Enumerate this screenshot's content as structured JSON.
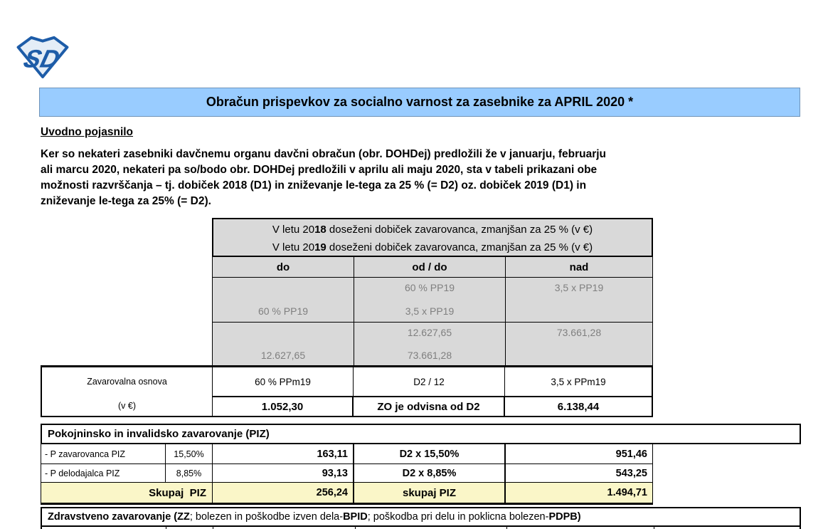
{
  "document": {
    "title": "Obračun prispevkov za socialno varnost za zasebnike za APRIL 2020 *",
    "logo_text": "SD"
  },
  "intro": {
    "heading": "Uvodno pojasnilo",
    "paragraph": "Ker so nekateri zasebniki davčnemu organu davčni obračun (obr. DOHDej) predložili že v januarju, februarju\nali marcu 2020, nekateri pa so/bodo obr. DOHDej predložili v aprilu ali maju 2020, sta v tabeli prikazani obe\nmožnosti razvrščanja – tj. dobiček 2018 (D1) in zniževanje le-tega za 25 % (= D2) oz. dobiček 2019 (D1) in\nzniževanje le-tega za 25% (= D2)."
  },
  "range_table": {
    "header_line1_segments": [
      {
        "t": "V letu 20"
      },
      {
        "t": "18",
        "b": true
      },
      {
        "t": " doseženi dobiček zavarovanca, zmanjšan za 25 % (v €)"
      }
    ],
    "header_line2_segments": [
      {
        "t": "V letu 20"
      },
      {
        "t": "19",
        "b": true
      },
      {
        "t": " doseženi dobiček zavarovanca, zmanjšan za 25 % (v €)"
      }
    ],
    "columns": {
      "c1": "do",
      "c2": "od / do",
      "c3": "nad"
    },
    "pp_row": {
      "do_value": "60 % PP19",
      "od_value": "60 % PP19",
      "do2_value": "3,5 x PP19",
      "nad_value": "3,5 x PP19"
    },
    "amount_row": {
      "do_value": "12.627,65",
      "od_value": "12.627,65",
      "do2_value": "73.661,28",
      "nad_value": "73.661,28"
    }
  },
  "base_row": {
    "label_line1": "Zavarovalna osnova",
    "label_line2": "(v €)",
    "formula_do": "60 % PPm19",
    "formula_od": "D2 / 12",
    "formula_nad": "3,5 x PPm19",
    "value_do": "1.052,30",
    "value_od": "ZO je odvisna od D2",
    "value_nad": "6.138,44"
  },
  "piz_section": {
    "title": "Pokojninsko in invalidsko zavarovanje (PIZ)",
    "rows": [
      {
        "label": "- P zavarovanca PIZ",
        "rate": "15,50%",
        "amount": "163,11",
        "formula": "D2 x 15,50%",
        "amount_max": "951,46"
      },
      {
        "label": "- P delodajalca PIZ",
        "rate": "8,85%",
        "amount": "93,13",
        "formula": "D2 x 8,85%",
        "amount_max": "543,25"
      }
    ],
    "total_row": {
      "label": "Skupaj  PIZ",
      "amount": "256,24",
      "formula": "skupaj PIZ",
      "amount_max": "1.494,71"
    }
  },
  "zz_section": {
    "title_segments": [
      {
        "t": "Zdravstveno zavarovanje (ZZ",
        "b": true
      },
      {
        "t": "; bolezen in poškodbe izven dela-"
      },
      {
        "t": "BPID",
        "b": true
      },
      {
        "t": "; poškodba pri delu in poklicna bolezen-"
      },
      {
        "t": "PDPB",
        "b": true
      },
      {
        "t": ")",
        "b": true
      }
    ]
  },
  "colors": {
    "banner_blue": "#99CCFF",
    "table_gray": "#D9D9D9",
    "gray_text": "#7F7F7F",
    "highlight_yellow": "#FAF6C8",
    "logo_blue": "#1D5CA8"
  }
}
